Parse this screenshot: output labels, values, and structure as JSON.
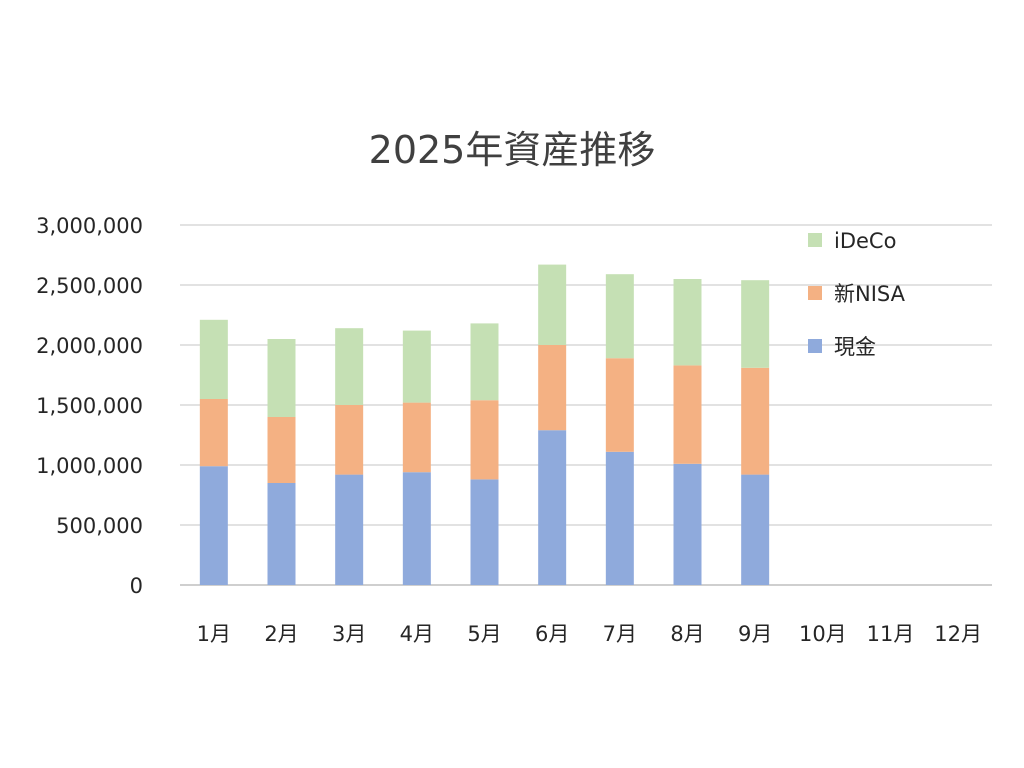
{
  "chart_data": {
    "type": "bar",
    "stacked": true,
    "title": "2025年資産推移",
    "categories": [
      "1月",
      "2月",
      "3月",
      "4月",
      "5月",
      "6月",
      "7月",
      "8月",
      "9月",
      "10月",
      "11月",
      "12月"
    ],
    "series": [
      {
        "name": "現金",
        "color": "#8faadc",
        "values": [
          990000,
          850000,
          920000,
          940000,
          880000,
          1290000,
          1110000,
          1010000,
          920000,
          null,
          null,
          null
        ]
      },
      {
        "name": "新NISA",
        "color": "#f4b183",
        "values": [
          560000,
          550000,
          580000,
          580000,
          660000,
          710000,
          780000,
          820000,
          890000,
          null,
          null,
          null
        ]
      },
      {
        "name": "iDeCo",
        "color": "#c5e0b4",
        "values": [
          660000,
          650000,
          640000,
          600000,
          640000,
          670000,
          700000,
          720000,
          730000,
          null,
          null,
          null
        ]
      }
    ],
    "yticks": [
      "0",
      "500,000",
      "1,000,000",
      "1,500,000",
      "2,000,000",
      "2,500,000",
      "3,000,000"
    ],
    "ylim": [
      0,
      3000000
    ],
    "grid": true,
    "legend_position": "top-right",
    "legend_order": [
      "iDeCo",
      "新NISA",
      "現金"
    ]
  }
}
